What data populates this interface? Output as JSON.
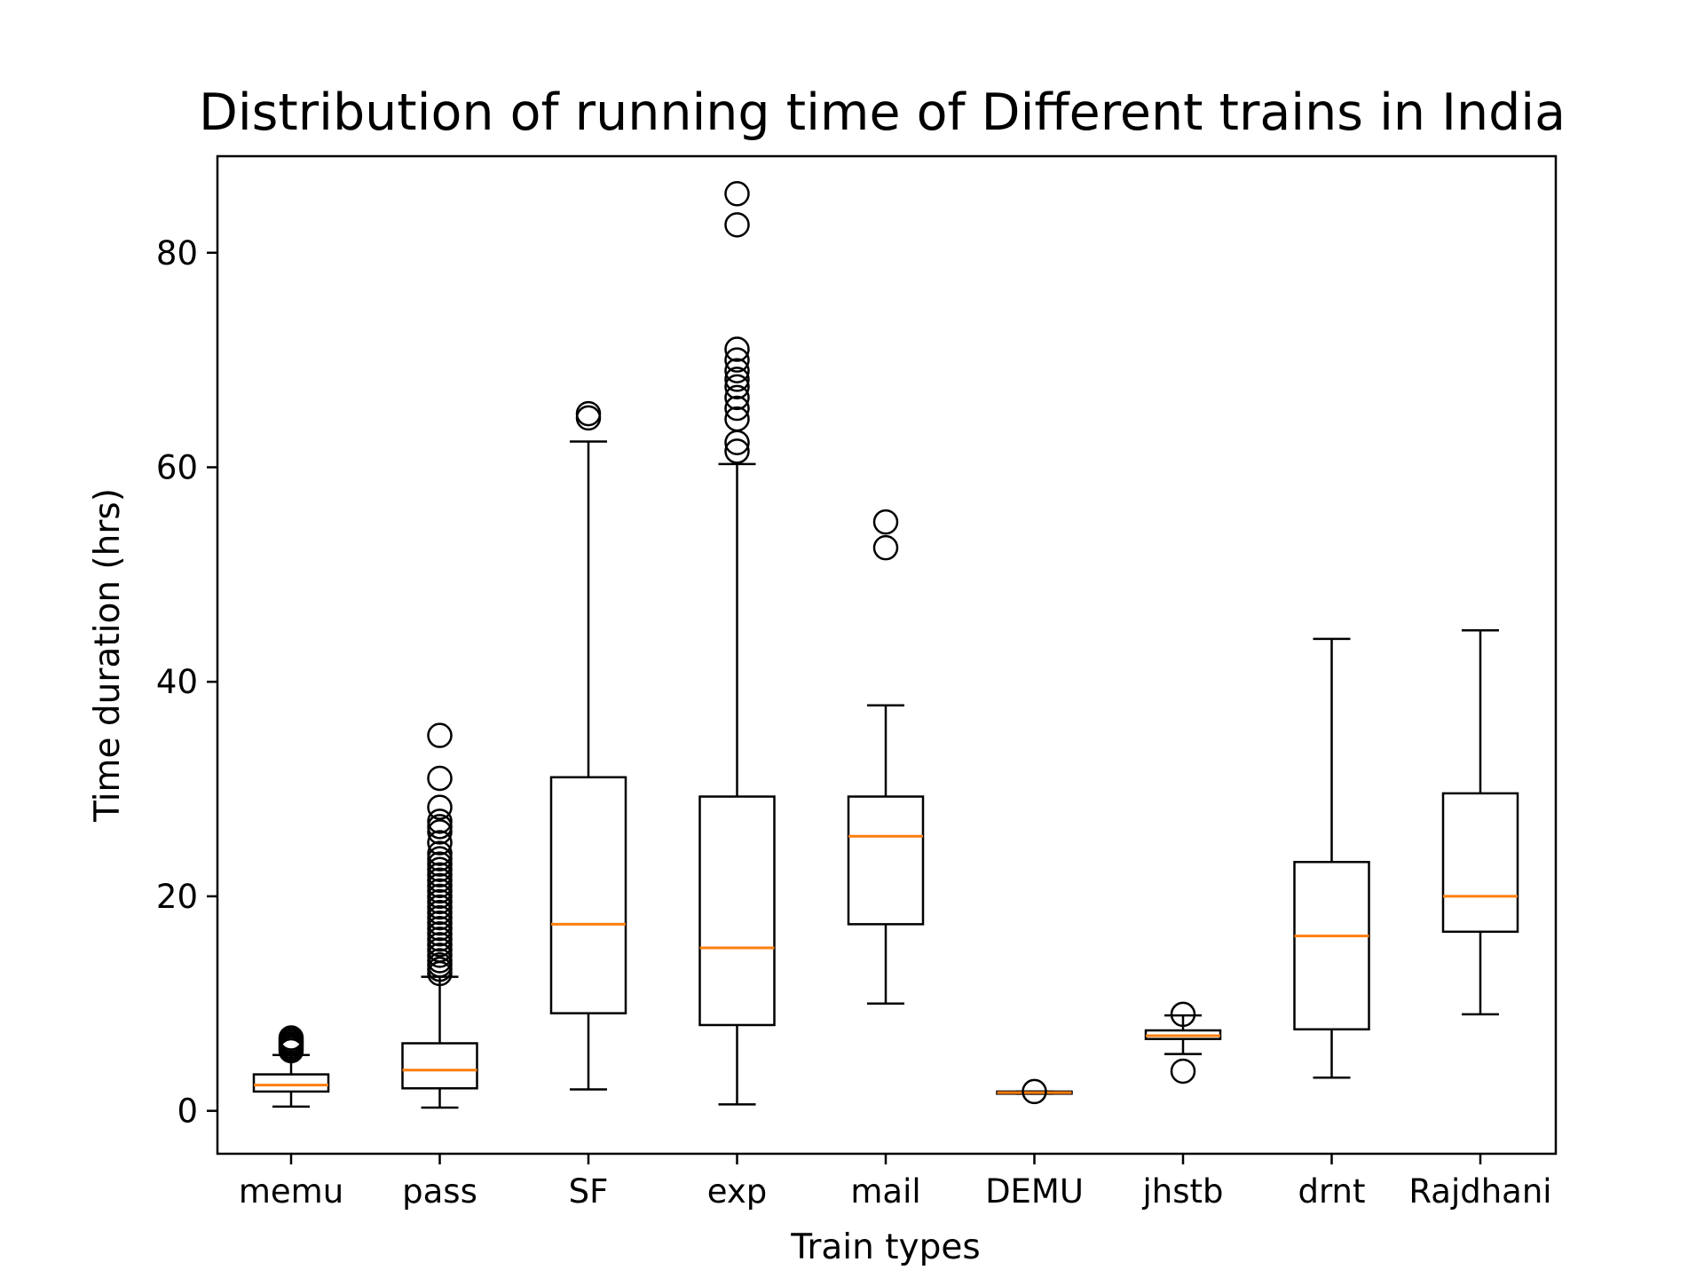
{
  "chart_data": {
    "type": "box",
    "title": "Distribution of running time of Different trains in India",
    "xlabel": "Train types",
    "ylabel": "Time duration (hrs)",
    "ylim": [
      -4,
      89
    ],
    "yticks": [
      0,
      20,
      40,
      60,
      80
    ],
    "grid": false,
    "colors": {
      "box": "#000000",
      "median": "#ff7f0e",
      "background": "#ffffff"
    },
    "categories": [
      "memu",
      "pass",
      "SF",
      "exp",
      "mail",
      "DEMU",
      "jhstb",
      "drnt",
      "Rajdhani"
    ],
    "boxes": [
      {
        "name": "memu",
        "whisker_low": 0.4,
        "q1": 1.8,
        "median": 2.4,
        "q3": 3.4,
        "whisker_high": 5.2,
        "outliers": [
          5.6,
          5.8,
          6.0,
          6.2,
          6.4,
          6.6,
          6.8
        ]
      },
      {
        "name": "pass",
        "whisker_low": 0.3,
        "q1": 2.1,
        "median": 3.8,
        "q3": 6.3,
        "whisker_high": 12.5,
        "outliers": [
          12.8,
          13.2,
          13.6,
          14.0,
          14.5,
          15.0,
          15.5,
          16.0,
          16.5,
          17.0,
          17.5,
          18.0,
          18.5,
          19.0,
          19.5,
          20.0,
          20.5,
          21.0,
          21.5,
          22.0,
          22.5,
          23.0,
          23.5,
          24.0,
          25.0,
          26.0,
          26.5,
          27.0,
          28.3,
          31.0,
          35.0
        ]
      },
      {
        "name": "SF",
        "whisker_low": 2.0,
        "q1": 9.1,
        "median": 17.4,
        "q3": 31.1,
        "whisker_high": 62.4,
        "outliers": [
          64.6,
          65.0
        ]
      },
      {
        "name": "exp",
        "whisker_low": 0.6,
        "q1": 8.0,
        "median": 15.2,
        "q3": 29.3,
        "whisker_high": 60.3,
        "outliers": [
          61.5,
          62.3,
          64.5,
          65.5,
          66.5,
          67.5,
          68.2,
          69.0,
          70.0,
          71.0,
          82.6,
          85.5
        ]
      },
      {
        "name": "mail",
        "whisker_low": 10.0,
        "q1": 17.4,
        "median": 25.6,
        "q3": 29.3,
        "whisker_high": 37.8,
        "outliers": [
          52.5,
          54.9
        ]
      },
      {
        "name": "DEMU",
        "whisker_low": 1.6,
        "q1": 1.6,
        "median": 1.7,
        "q3": 1.8,
        "whisker_high": 1.8,
        "outliers": [
          1.8
        ]
      },
      {
        "name": "jhstb",
        "whisker_low": 5.3,
        "q1": 6.7,
        "median": 7.0,
        "q3": 7.5,
        "whisker_high": 8.9,
        "outliers": [
          3.7,
          9.0
        ]
      },
      {
        "name": "drnt",
        "whisker_low": 3.1,
        "q1": 7.6,
        "median": 16.3,
        "q3": 23.2,
        "whisker_high": 44.0,
        "outliers": []
      },
      {
        "name": "Rajdhani",
        "whisker_low": 9.0,
        "q1": 16.7,
        "median": 20.0,
        "q3": 29.6,
        "whisker_high": 44.8,
        "outliers": []
      }
    ]
  }
}
